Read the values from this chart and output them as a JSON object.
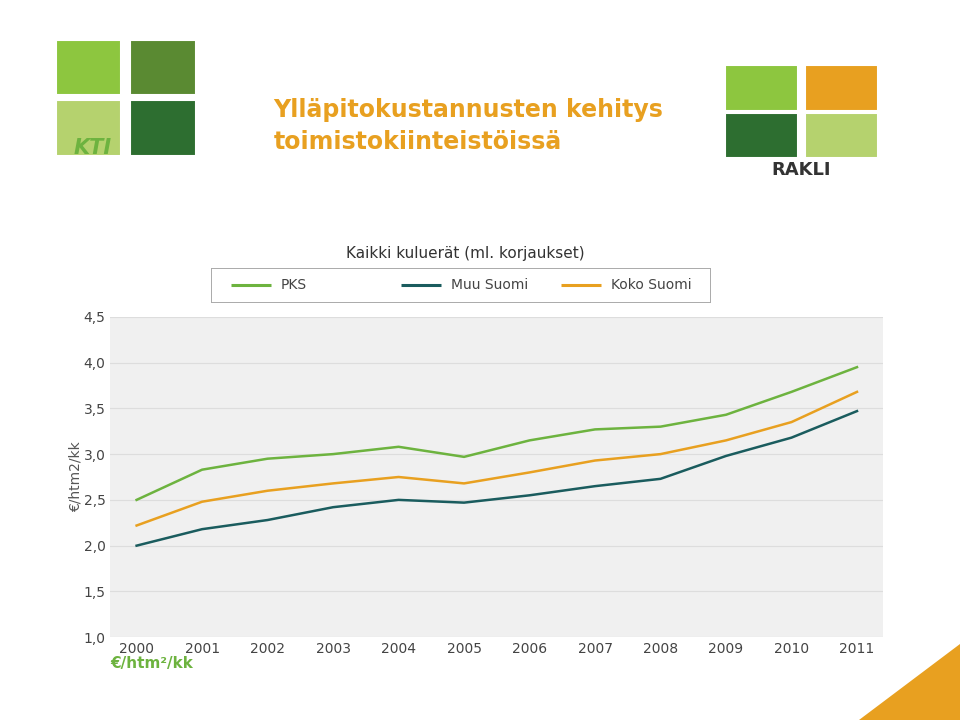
{
  "title_main": "Ylläpitokustannusten kehitys\ntoimistokiinteistöissä",
  "subtitle": "Kaikki kuluerät (ml. korjaukset)",
  "ylabel": "€/htm2/kk",
  "xlabel_bottom": "€/htm²/kk",
  "years": [
    2000,
    2001,
    2002,
    2003,
    2004,
    2005,
    2006,
    2007,
    2008,
    2009,
    2010,
    2011
  ],
  "PKS": [
    2.5,
    2.83,
    2.95,
    3.0,
    3.08,
    2.97,
    3.15,
    3.27,
    3.3,
    3.43,
    3.68,
    3.95
  ],
  "Muu_Suomi": [
    2.0,
    2.18,
    2.28,
    2.42,
    2.5,
    2.47,
    2.55,
    2.65,
    2.73,
    2.98,
    3.18,
    3.47
  ],
  "Koko_Suomi": [
    2.22,
    2.48,
    2.6,
    2.68,
    2.75,
    2.68,
    2.8,
    2.93,
    3.0,
    3.15,
    3.35,
    3.68
  ],
  "PKS_color": "#6db33f",
  "Muu_Suomi_color": "#1a5c5e",
  "Koko_Suomi_color": "#e8a020",
  "ylim": [
    1.0,
    4.5
  ],
  "yticks": [
    1.0,
    1.5,
    2.0,
    2.5,
    3.0,
    3.5,
    4.0,
    4.5
  ],
  "bg_color": "#ffffff",
  "plot_bg_color": "#f0f0f0",
  "legend_labels": [
    "PKS",
    "Muu Suomi",
    "Koko Suomi"
  ],
  "grid_color": "#dddddd",
  "title_color": "#e8a020",
  "line_width": 1.8,
  "kti_colors": [
    "#8dc63f",
    "#5a8a32",
    "#b5d26e",
    "#2d6e30"
  ],
  "rakli_colors": [
    "#8dc63f",
    "#e8a020",
    "#2d6e30",
    "#b5d26e"
  ],
  "triangle_color": "#e8a020"
}
